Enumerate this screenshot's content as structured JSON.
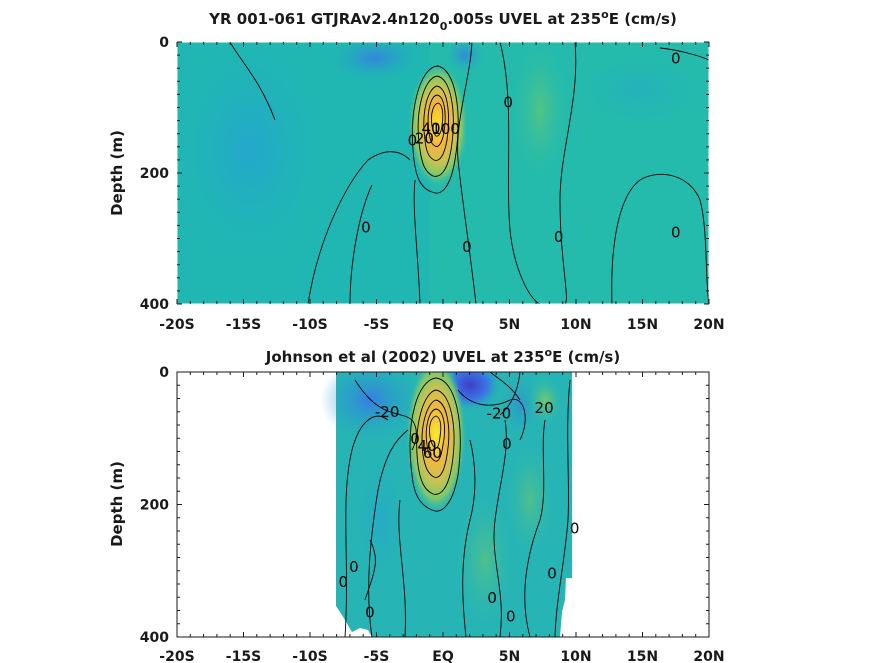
{
  "chart_data": [
    {
      "type": "contour",
      "title": "YR 001-061 GTJRAv2.4n120",
      "title_subscript": "0",
      "title_rest": ".005s UVEL at 235",
      "title_superscript": "o",
      "title_end": "E (cm/s)",
      "xlabel": "",
      "ylabel": "Depth (m)",
      "xlim": [
        -20,
        20
      ],
      "ylim": [
        400,
        0
      ],
      "x_ticks": [
        -20,
        -15,
        -10,
        -5,
        0,
        5,
        10,
        15,
        20
      ],
      "x_tick_labels": [
        "-20S",
        "-15S",
        "-10S",
        "-5S",
        "EQ",
        "5N",
        "10N",
        "15N",
        "20N"
      ],
      "y_ticks": [
        0,
        200,
        400
      ],
      "y_tick_labels": [
        "0",
        "200",
        "400"
      ],
      "data_extent": [
        -20,
        20
      ],
      "core": {
        "lat": 0.3,
        "depth": 110,
        "peak_cm_s": 100
      },
      "contour_labels": [
        {
          "text": "0",
          "lat": 17.5,
          "depth": 25
        },
        {
          "text": "0",
          "lat": 4.9,
          "depth": 92
        },
        {
          "text": "40",
          "lat": -0.9,
          "depth": 132
        },
        {
          "text": "20",
          "lat": -1.4,
          "depth": 147
        },
        {
          "text": "0",
          "lat": -2.3,
          "depth": 150
        },
        {
          "text": "100",
          "lat": 0.2,
          "depth": 133
        },
        {
          "text": "0",
          "lat": -5.8,
          "depth": 283
        },
        {
          "text": "0",
          "lat": 1.8,
          "depth": 313
        },
        {
          "text": "0",
          "lat": 8.7,
          "depth": 298
        },
        {
          "text": "0",
          "lat": 17.5,
          "depth": 291
        }
      ]
    },
    {
      "type": "contour",
      "title": "Johnson et al (2002) UVEL at 235",
      "title_superscript": "o",
      "title_end": "E (cm/s)",
      "xlabel": "",
      "ylabel": "Depth (m)",
      "xlim": [
        -20,
        20
      ],
      "ylim": [
        400,
        0
      ],
      "x_ticks": [
        -20,
        -15,
        -10,
        -5,
        0,
        5,
        10,
        15,
        20
      ],
      "x_tick_labels": [
        "-20S",
        "-15S",
        "-10S",
        "-5S",
        "EQ",
        "5N",
        "10N",
        "15N",
        "20N"
      ],
      "y_ticks": [
        0,
        200,
        400
      ],
      "y_tick_labels": [
        "0",
        "200",
        "400"
      ],
      "data_extent": [
        -8,
        10
      ],
      "core": {
        "lat": 0.1,
        "depth": 90,
        "peak_cm_s": 100
      },
      "contour_labels": [
        {
          "text": "-20",
          "lat": -4.2,
          "depth": 60
        },
        {
          "text": "-20",
          "lat": 4.2,
          "depth": 63
        },
        {
          "text": "20",
          "lat": 7.6,
          "depth": 54
        },
        {
          "text": "0",
          "lat": -2.1,
          "depth": 101
        },
        {
          "text": "0",
          "lat": 4.8,
          "depth": 109
        },
        {
          "text": "40",
          "lat": -1.2,
          "depth": 112
        },
        {
          "text": "60",
          "lat": -0.8,
          "depth": 122
        },
        {
          "text": "0",
          "lat": 9.9,
          "depth": 236
        },
        {
          "text": "0",
          "lat": -6.7,
          "depth": 294
        },
        {
          "text": "0",
          "lat": -7.5,
          "depth": 317
        },
        {
          "text": "0",
          "lat": 8.2,
          "depth": 304
        },
        {
          "text": "0",
          "lat": 3.7,
          "depth": 341
        },
        {
          "text": "0",
          "lat": -5.5,
          "depth": 363
        },
        {
          "text": "0",
          "lat": 5.1,
          "depth": 369
        }
      ]
    }
  ]
}
